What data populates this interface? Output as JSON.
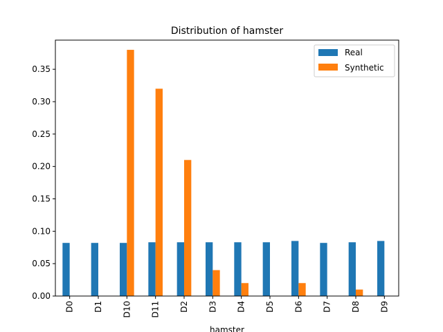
{
  "chart_data": {
    "type": "bar",
    "title": "Distribution of hamster",
    "xlabel": "hamster",
    "ylabel": "",
    "categories": [
      "D0",
      "D1",
      "D10",
      "D11",
      "D2",
      "D3",
      "D4",
      "D5",
      "D6",
      "D7",
      "D8",
      "D9"
    ],
    "series": [
      {
        "name": "Real",
        "color": "#1f77b4",
        "values": [
          0.082,
          0.082,
          0.082,
          0.083,
          0.083,
          0.083,
          0.083,
          0.083,
          0.085,
          0.082,
          0.083,
          0.085
        ]
      },
      {
        "name": "Synthetic",
        "color": "#ff7f0e",
        "values": [
          0,
          0,
          0.38,
          0.32,
          0.21,
          0.04,
          0.02,
          0,
          0.02,
          0,
          0.01,
          0
        ]
      }
    ],
    "ylim": [
      0,
      0.395
    ],
    "yticks": [
      "0.00",
      "0.05",
      "0.10",
      "0.15",
      "0.20",
      "0.25",
      "0.30",
      "0.35"
    ],
    "grid": false,
    "legend_position": "upper-right"
  }
}
